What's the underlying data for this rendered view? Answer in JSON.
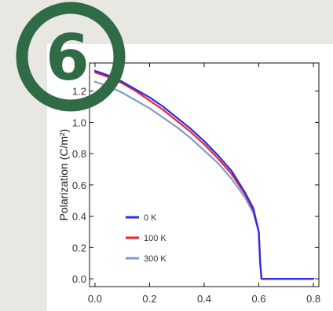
{
  "badge": {
    "number": "6",
    "color": "#2f6b44"
  },
  "chart_data": {
    "type": "line",
    "title": "",
    "xlabel": "",
    "ylabel": "Polarization (C/m²)",
    "xlim": [
      -0.02,
      0.82
    ],
    "ylim": [
      -0.05,
      1.38
    ],
    "xticks": [
      "0.0",
      "0.2",
      "0.4",
      "0.6",
      "0.8"
    ],
    "yticks": [
      "0.0",
      "0.2",
      "0.4",
      "0.6",
      "0.8",
      "1.0",
      "1.2"
    ],
    "grid": false,
    "legend_placement": "bottom-left",
    "series": [
      {
        "name": "0 K",
        "color": "#2a2af0",
        "x": [
          0.0,
          0.05,
          0.1,
          0.15,
          0.2,
          0.25,
          0.3,
          0.35,
          0.4,
          0.45,
          0.5,
          0.55,
          0.58,
          0.6,
          0.605,
          0.61,
          0.7,
          0.8
        ],
        "y": [
          1.33,
          1.3,
          1.26,
          1.21,
          1.16,
          1.1,
          1.03,
          0.96,
          0.88,
          0.79,
          0.69,
          0.55,
          0.45,
          0.3,
          0.1,
          0.0,
          0.0,
          0.0
        ]
      },
      {
        "name": "100 K",
        "color": "#e8262a",
        "x": [
          0.0,
          0.05,
          0.1,
          0.15,
          0.2,
          0.25,
          0.3,
          0.35,
          0.4,
          0.45,
          0.5,
          0.55,
          0.58,
          0.6,
          0.605,
          0.61,
          0.7,
          0.8
        ],
        "y": [
          1.32,
          1.29,
          1.25,
          1.2,
          1.14,
          1.08,
          1.01,
          0.94,
          0.86,
          0.77,
          0.67,
          0.54,
          0.44,
          0.3,
          0.1,
          0.0,
          0.0,
          0.0
        ]
      },
      {
        "name": "300 K",
        "color": "#7f9cc4",
        "x": [
          0.0,
          0.05,
          0.1,
          0.15,
          0.2,
          0.25,
          0.3,
          0.35,
          0.4,
          0.45,
          0.5,
          0.55,
          0.58,
          0.6,
          0.605,
          0.61,
          0.7,
          0.8
        ],
        "y": [
          1.26,
          1.23,
          1.19,
          1.14,
          1.09,
          1.03,
          0.97,
          0.9,
          0.82,
          0.74,
          0.64,
          0.52,
          0.42,
          0.3,
          0.1,
          0.0,
          0.0,
          0.0
        ]
      }
    ]
  }
}
